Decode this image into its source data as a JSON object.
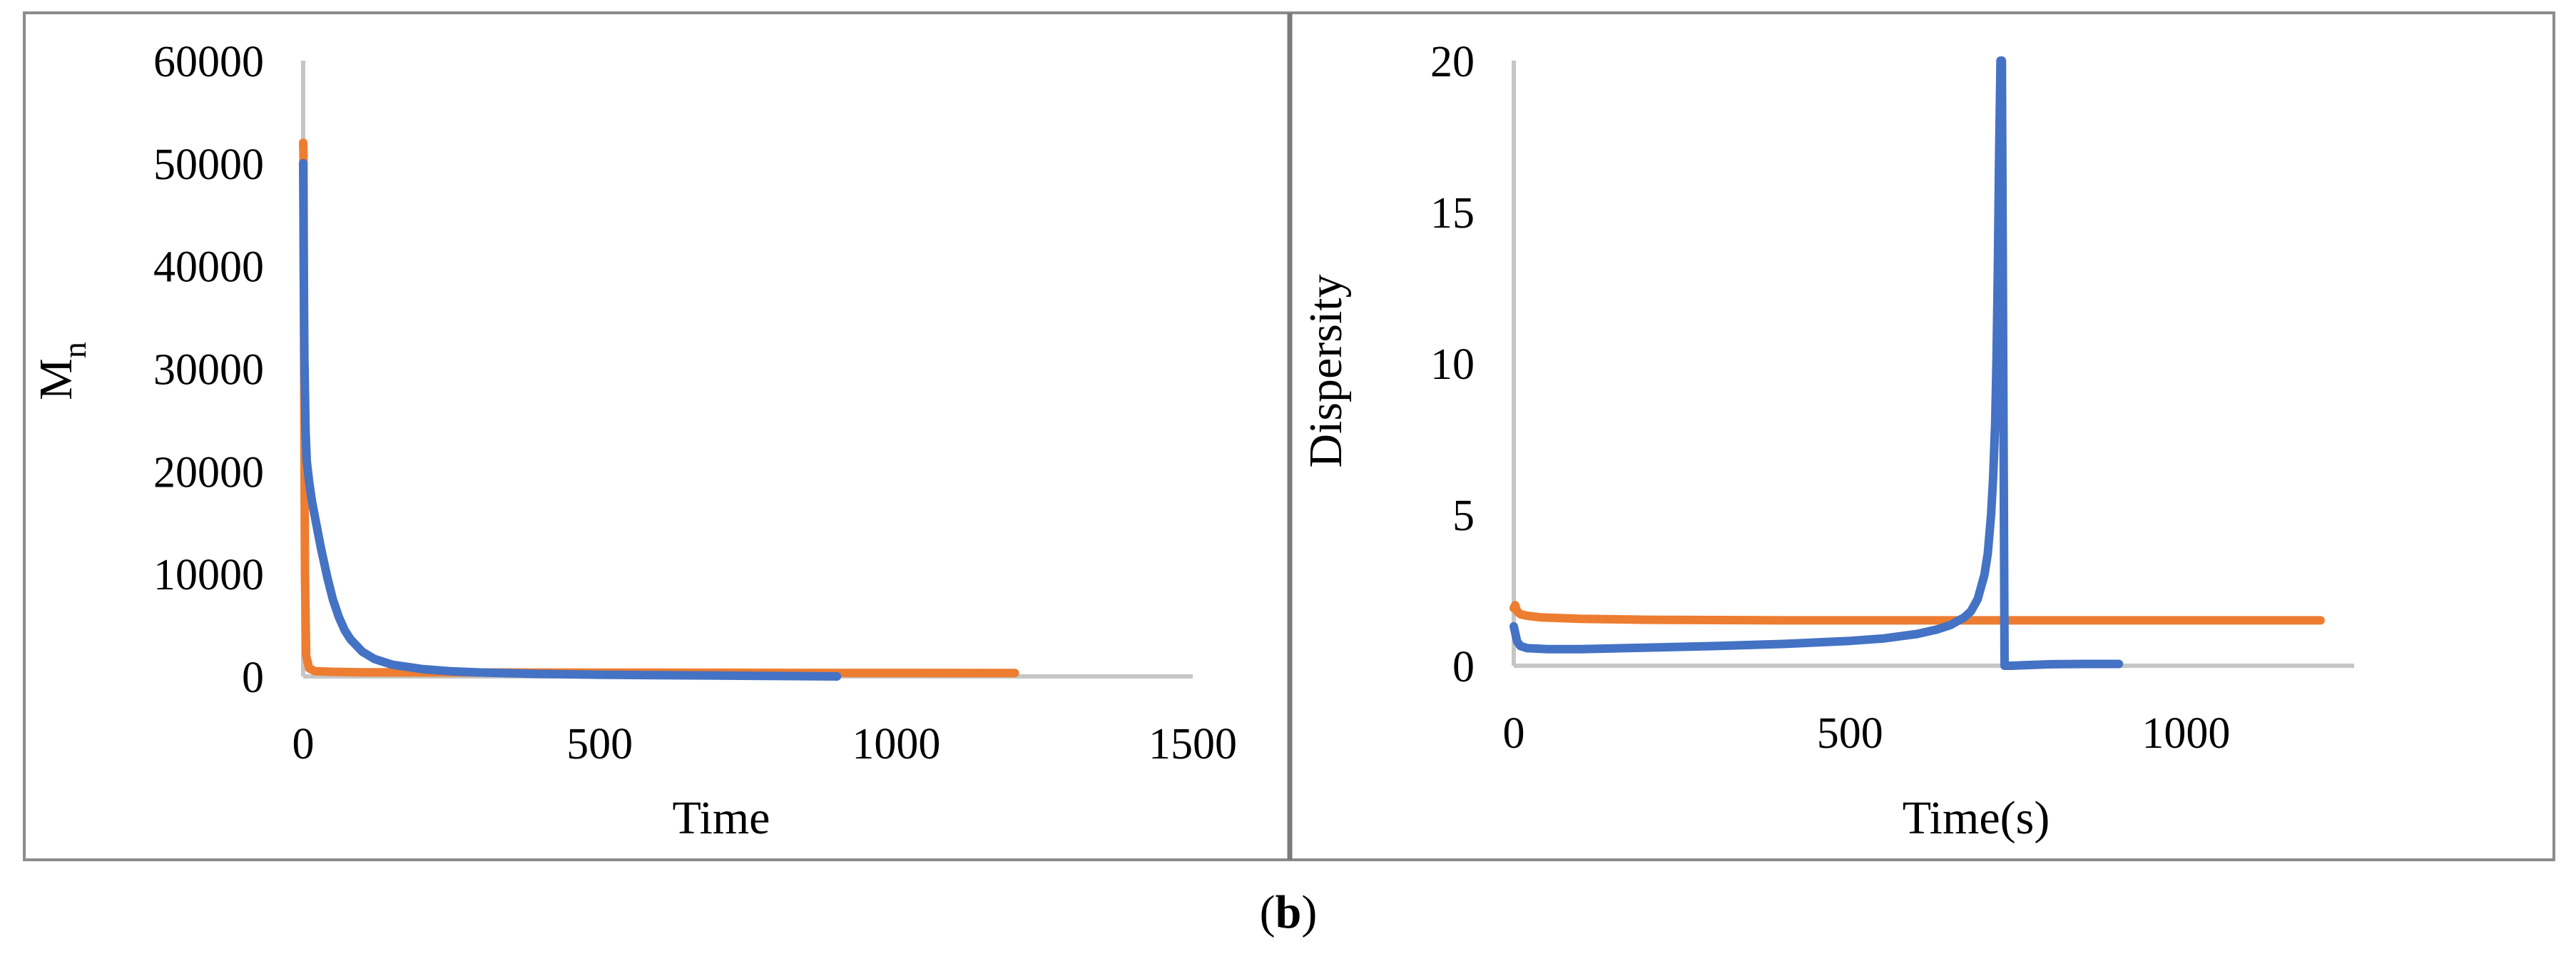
{
  "figure": {
    "caption_open": "(",
    "caption_letter": "b",
    "caption_close": ")"
  },
  "colors": {
    "blue": "#4472C4",
    "orange": "#ED7D31",
    "axis": "#BFBFBF",
    "frame": "#8C8C8C"
  },
  "chart_data": [
    {
      "type": "line",
      "title": "",
      "xlabel": "Time",
      "ylabel_main": "M",
      "ylabel_sub": "n",
      "xlim": [
        0,
        1500
      ],
      "ylim": [
        0,
        60000
      ],
      "x_ticks": [
        "0",
        "500",
        "1000",
        "1500"
      ],
      "y_ticks": [
        "0",
        "10000",
        "20000",
        "30000",
        "40000",
        "50000",
        "60000"
      ],
      "x_tick_values": [
        0,
        500,
        1000,
        1500
      ],
      "y_tick_values": [
        0,
        10000,
        20000,
        30000,
        40000,
        50000,
        60000
      ],
      "grid": false,
      "legend": "none",
      "series": [
        {
          "color": "#ED7D31",
          "x": [
            0,
            0.5,
            1,
            2,
            3,
            5,
            10,
            20,
            50,
            100,
            300,
            600,
            900,
            1200
          ],
          "y": [
            52000,
            51000,
            40000,
            25000,
            10000,
            2000,
            800,
            500,
            450,
            400,
            380,
            360,
            340,
            330
          ]
        },
        {
          "color": "#4472C4",
          "x": [
            0,
            1,
            2,
            4,
            6,
            10,
            15,
            20,
            30,
            40,
            50,
            60,
            70,
            80,
            100,
            120,
            150,
            200,
            250,
            300,
            400,
            500,
            600,
            700,
            800,
            900
          ],
          "y": [
            50000,
            40000,
            31000,
            24000,
            21000,
            19000,
            17000,
            15500,
            12500,
            9800,
            7500,
            5800,
            4500,
            3600,
            2400,
            1700,
            1150,
            720,
            500,
            380,
            240,
            170,
            120,
            80,
            40,
            0
          ]
        }
      ]
    },
    {
      "type": "line",
      "title": "",
      "xlabel": "Time(s)",
      "ylabel": "Dispersity",
      "xlim": [
        0,
        1250
      ],
      "ylim": [
        0,
        20
      ],
      "x_ticks": [
        "0",
        "500",
        "1000"
      ],
      "y_ticks": [
        "0",
        "5",
        "10",
        "15",
        "20"
      ],
      "x_tick_values": [
        0,
        500,
        1000
      ],
      "y_tick_values": [
        0,
        5,
        10,
        15,
        20
      ],
      "grid": false,
      "legend": "none",
      "series": [
        {
          "color": "#ED7D31",
          "x": [
            0,
            2,
            5,
            10,
            20,
            40,
            100,
            200,
            400,
            600,
            800,
            1000,
            1200
          ],
          "y": [
            1.9,
            2.0,
            1.8,
            1.7,
            1.65,
            1.6,
            1.55,
            1.52,
            1.5,
            1.5,
            1.5,
            1.5,
            1.5
          ]
        },
        {
          "color": "#4472C4",
          "x": [
            0,
            2,
            5,
            10,
            20,
            50,
            100,
            200,
            300,
            400,
            500,
            550,
            600,
            630,
            650,
            670,
            680,
            690,
            700,
            705,
            710,
            713,
            716,
            718,
            720,
            722,
            724,
            726,
            728,
            730,
            740,
            760,
            800,
            850,
            900
          ],
          "y": [
            1.3,
            1.1,
            0.8,
            0.65,
            0.58,
            0.55,
            0.55,
            0.6,
            0.65,
            0.72,
            0.82,
            0.9,
            1.05,
            1.2,
            1.35,
            1.6,
            1.8,
            2.2,
            3.0,
            3.7,
            5.0,
            6.2,
            8.0,
            10.0,
            13.0,
            17.0,
            20,
            20,
            10,
            0,
            0,
            0.02,
            0.05,
            0.06,
            0.06
          ]
        }
      ]
    }
  ]
}
